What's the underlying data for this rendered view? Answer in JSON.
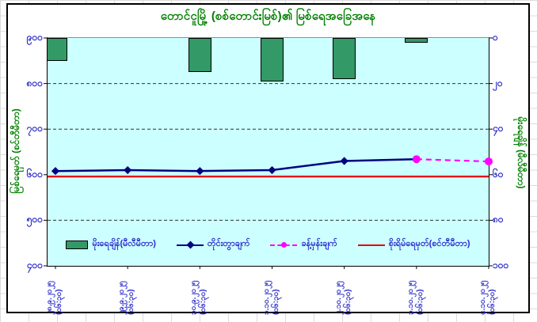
{
  "title": "တောင်ငူမြို့ (စစ်တောင်းမြစ်)၏ မြစ်ရေအခြေအနေ",
  "axes": {
    "left": {
      "title": "မြစ်ရေမှတ် (စင်တီမီတာ)",
      "ticks": [
        "၉၀၀",
        "၈၀၀",
        "၇၀၀",
        "၆၀၀",
        "၅၀၀",
        "၄၀၀"
      ]
    },
    "right": {
      "title": "မိုးရေချိန် (မီလီမီတာ)",
      "ticks": [
        "၀",
        "၂၀",
        "၄၀",
        "၆၀",
        "၈၀",
        "၁၀၀"
      ]
    },
    "x": {
      "labels": [
        {
          "date": "၂၈.၉.၂၀၂၅",
          "time": "(၀၆:၃၀)"
        },
        {
          "date": "၂၉.၉.၂၀၂၅",
          "time": "(၀၆:၃၀)"
        },
        {
          "date": "၃၀.၉.၂၀၂၅",
          "time": "(၀၆:၃၀)"
        },
        {
          "date": "၁.၁၀.၂၀၂၅",
          "time": "(၀၆:၃၀)"
        },
        {
          "date": "၂.၁၀.၂၀၂၅",
          "time": "(၀၆:၃၀)"
        },
        {
          "date": "၃.၁၀.၂၀၂၅",
          "time": "(၀၆:၃၀)"
        },
        {
          "date": "၄.၁၀.၂၀၂၅",
          "time": "(၀၆:၃၀)"
        }
      ]
    }
  },
  "legend": [
    {
      "label": "မိုးရေချိန်(မီလီမီတာ)",
      "swatch": "bar-green"
    },
    {
      "label": "တိုင်းတွာချက်",
      "swatch": "navy-line-diamond"
    },
    {
      "label": "ခန့်မှန်းချက်",
      "swatch": "magenta-dashed-circle"
    },
    {
      "label": "စိုးရိမ်ရေမှတ်(စင်တီမီတာ)",
      "swatch": "red-line"
    }
  ],
  "chart_data": {
    "type": "combo",
    "categories": [
      "၂၈.၉.၂၀၂၅ (၀၆:၃၀)",
      "၂၉.၉.၂၀၂၅ (၀၆:၃၀)",
      "၃၀.၉.၂၀၂၅ (၀၆:၃၀)",
      "၁.၁၀.၂၀၂၅ (၀၆:၃၀)",
      "၂.၁၀.၂၀၂၅ (၀၆:၃၀)",
      "၃.၁၀.၂၀၂၅ (၀၆:၃၀)",
      "၄.၁၀.၂၀၂၅ (၀၆:၃၀)"
    ],
    "categories_latin": [
      "28.9.2025 (06:30)",
      "29.9.2025 (06:30)",
      "30.9.2025 (06:30)",
      "1.10.2025 (06:30)",
      "2.10.2025 (06:30)",
      "3.10.2025 (06:30)",
      "4.10.2025 (06:30)"
    ],
    "title": "တောင်ငူမြို့ (စစ်တောင်းမြစ်)၏ မြစ်ရေအခြေအနေ",
    "ylabel_left": "မြစ်ရေမှတ် (စင်တီမီတာ)",
    "ylabel_right": "မိုးရေချိန် (မီလီမီတာ)",
    "left_axis_range": [
      400,
      900
    ],
    "right_axis_range": [
      0,
      100
    ],
    "right_axis_inverted_from_top": true,
    "gridline_values_left": [
      800,
      700,
      500
    ],
    "series": [
      {
        "name": "မိုးရေချိန်(မီလီမီတာ)",
        "type": "bar",
        "axis": "right",
        "values": [
          10,
          0,
          15,
          19,
          18,
          2,
          0
        ]
      },
      {
        "name": "တိုင်းတွာချက်",
        "type": "line",
        "marker": "diamond",
        "axis": "left",
        "values": [
          608,
          610,
          608,
          610,
          630,
          634,
          null
        ]
      },
      {
        "name": "ခန့်မှန်းချက်",
        "type": "line-dashed",
        "marker": "circle",
        "axis": "left",
        "values": [
          null,
          null,
          null,
          null,
          null,
          634,
          629
        ]
      },
      {
        "name": "စိုးရိမ်ရေမှတ်(စင်တီမီတာ)",
        "type": "line",
        "axis": "left",
        "values": [
          596,
          596,
          596,
          596,
          596,
          596,
          596
        ]
      }
    ]
  },
  "colors": {
    "plot_bg": "#CCFFFF",
    "bar_fill": "#339966",
    "measured_line": "#000080",
    "forecast_line": "#FF00FF",
    "danger_line": "#E60000",
    "tick_text": "#2929CC",
    "heading_text": "#008000",
    "gridline": "#303030"
  }
}
